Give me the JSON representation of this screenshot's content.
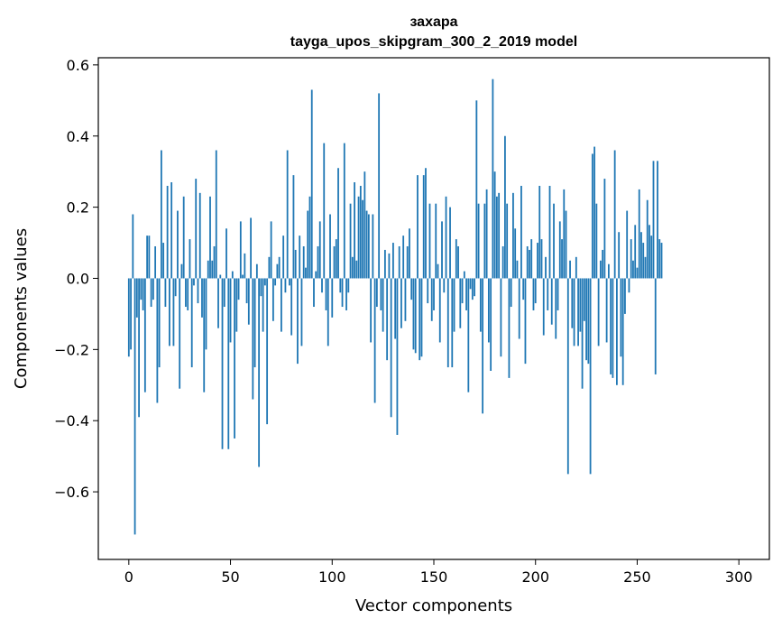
{
  "chart_data": {
    "type": "bar",
    "title": "захара",
    "subtitle": "tayga_upos_skipgram_300_2_2019 model",
    "xlabel": "Vector components",
    "ylabel": "Components values",
    "xlim": [
      -15,
      315
    ],
    "ylim": [
      -0.79,
      0.62
    ],
    "x_ticks": [
      0,
      50,
      100,
      150,
      200,
      250,
      300
    ],
    "x_tick_labels": [
      "0",
      "50",
      "100",
      "150",
      "200",
      "250",
      "300"
    ],
    "y_ticks": [
      -0.6,
      -0.4,
      -0.2,
      0.0,
      0.2,
      0.4,
      0.6
    ],
    "y_tick_labels": [
      "−0.6",
      "−0.4",
      "−0.2",
      "0.0",
      "0.2",
      "0.4",
      "0.6"
    ],
    "grid": false,
    "bar_color": "#1f77b4",
    "values": [
      -0.22,
      -0.2,
      0.18,
      -0.72,
      -0.11,
      -0.39,
      -0.06,
      -0.09,
      -0.32,
      0.12,
      0.12,
      -0.08,
      -0.06,
      0.09,
      -0.35,
      -0.25,
      0.36,
      0.1,
      -0.08,
      0.26,
      -0.19,
      0.27,
      -0.19,
      -0.05,
      0.19,
      -0.31,
      0.04,
      0.23,
      -0.08,
      -0.09,
      0.11,
      -0.25,
      -0.02,
      0.28,
      -0.07,
      0.24,
      -0.11,
      -0.32,
      -0.2,
      0.05,
      0.23,
      0.05,
      0.09,
      0.36,
      -0.14,
      0.01,
      -0.48,
      -0.08,
      0.14,
      -0.48,
      -0.18,
      0.02,
      -0.45,
      -0.15,
      -0.06,
      0.16,
      0.01,
      0.07,
      -0.07,
      -0.13,
      0.17,
      -0.34,
      -0.25,
      0.04,
      -0.53,
      -0.05,
      -0.15,
      -0.02,
      -0.41,
      0.06,
      0.16,
      -0.12,
      -0.02,
      0.04,
      0.06,
      -0.15,
      0.12,
      -0.04,
      0.36,
      -0.02,
      -0.16,
      0.29,
      0.08,
      -0.24,
      0.12,
      -0.19,
      0.09,
      0.03,
      0.19,
      0.23,
      0.53,
      -0.08,
      0.02,
      0.09,
      0.16,
      -0.04,
      0.38,
      -0.09,
      -0.19,
      0.18,
      -0.11,
      0.09,
      0.11,
      0.31,
      -0.04,
      -0.08,
      0.38,
      -0.09,
      -0.04,
      0.21,
      0.06,
      0.27,
      0.05,
      0.23,
      0.26,
      0.22,
      0.3,
      0.19,
      0.18,
      -0.18,
      0.18,
      -0.35,
      -0.08,
      0.52,
      -0.09,
      -0.15,
      0.08,
      -0.23,
      0.07,
      -0.39,
      0.1,
      -0.17,
      -0.44,
      0.09,
      -0.14,
      0.12,
      -0.12,
      0.09,
      0.14,
      -0.06,
      -0.2,
      -0.21,
      0.29,
      -0.23,
      -0.22,
      0.29,
      0.31,
      -0.07,
      0.21,
      -0.12,
      -0.09,
      0.21,
      0.04,
      -0.18,
      0.16,
      -0.04,
      0.23,
      -0.25,
      0.2,
      -0.25,
      -0.15,
      0.11,
      0.09,
      -0.14,
      -0.07,
      0.02,
      -0.09,
      -0.32,
      -0.03,
      -0.06,
      -0.05,
      0.5,
      0.21,
      -0.15,
      -0.38,
      0.21,
      0.25,
      -0.18,
      -0.26,
      0.56,
      0.3,
      0.23,
      0.24,
      -0.22,
      0.09,
      0.4,
      0.21,
      -0.28,
      -0.08,
      0.24,
      0.14,
      0.05,
      -0.17,
      0.26,
      -0.06,
      -0.24,
      0.09,
      0.08,
      0.11,
      -0.09,
      -0.07,
      0.1,
      0.26,
      0.11,
      -0.16,
      0.06,
      -0.09,
      0.26,
      -0.13,
      0.21,
      -0.17,
      -0.09,
      0.16,
      0.11,
      0.25,
      0.19,
      -0.55,
      0.05,
      -0.14,
      -0.19,
      0.06,
      -0.19,
      -0.15,
      -0.31,
      -0.12,
      -0.23,
      -0.24,
      -0.55,
      0.35,
      0.37,
      0.21,
      -0.19,
      0.05,
      0.08,
      0.28,
      -0.18,
      0.04,
      -0.27,
      -0.28,
      0.36,
      -0.3,
      0.13,
      -0.22,
      -0.3,
      -0.1,
      0.19,
      -0.04,
      0.11,
      0.05,
      0.15,
      0.03,
      0.25,
      0.13,
      0.1,
      0.06,
      0.22,
      0.15,
      0.12,
      0.33,
      -0.27,
      0.33,
      0.11,
      0.1
    ]
  }
}
